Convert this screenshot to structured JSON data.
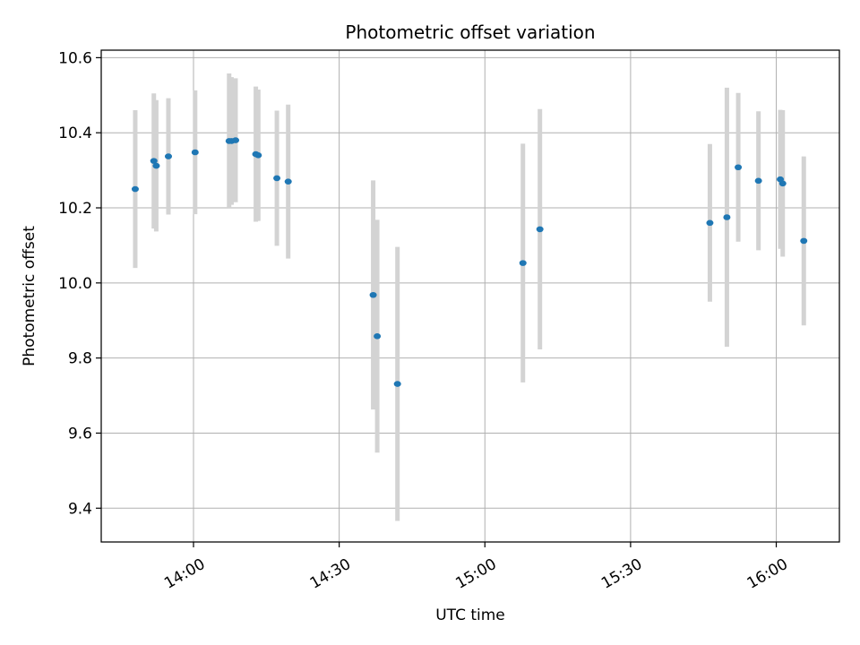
{
  "chart_data": {
    "type": "scatter",
    "title": "Photometric offset variation",
    "xlabel": "UTC time",
    "ylabel": "Photometric offset",
    "xlim": [
      "13:41",
      "16:13"
    ],
    "ylim": [
      9.31,
      10.62
    ],
    "x_ticks": [
      "14:00",
      "14:30",
      "15:00",
      "15:30",
      "16:00"
    ],
    "y_ticks": [
      9.4,
      9.6,
      9.8,
      10.0,
      10.2,
      10.4,
      10.6
    ],
    "y_tick_labels": [
      "9.4",
      "9.6",
      "9.8",
      "10.0",
      "10.2",
      "10.4",
      "10.6"
    ],
    "grid": true,
    "point_color": "#1f77b4",
    "errorbar_color": "#d3d3d3",
    "points": [
      {
        "x": "13:48:00",
        "y": 10.25,
        "err": 0.21
      },
      {
        "x": "13:51:50",
        "y": 10.325,
        "err": 0.18
      },
      {
        "x": "13:52:20",
        "y": 10.312,
        "err": 0.175
      },
      {
        "x": "13:54:50",
        "y": 10.337,
        "err": 0.155
      },
      {
        "x": "14:00:20",
        "y": 10.348,
        "err": 0.165
      },
      {
        "x": "14:07:20",
        "y": 10.378,
        "err": 0.18
      },
      {
        "x": "14:07:50",
        "y": 10.378,
        "err": 0.17
      },
      {
        "x": "14:08:40",
        "y": 10.38,
        "err": 0.165
      },
      {
        "x": "14:12:50",
        "y": 10.343,
        "err": 0.18
      },
      {
        "x": "14:13:20",
        "y": 10.34,
        "err": 0.175
      },
      {
        "x": "14:17:10",
        "y": 10.279,
        "err": 0.18
      },
      {
        "x": "14:19:30",
        "y": 10.27,
        "err": 0.205
      },
      {
        "x": "14:37:00",
        "y": 9.968,
        "err": 0.305
      },
      {
        "x": "14:37:50",
        "y": 9.858,
        "err": 0.31
      },
      {
        "x": "14:42:00",
        "y": 9.731,
        "err": 0.365
      },
      {
        "x": "15:07:50",
        "y": 10.053,
        "err": 0.318
      },
      {
        "x": "15:11:20",
        "y": 10.143,
        "err": 0.32
      },
      {
        "x": "15:46:20",
        "y": 10.16,
        "err": 0.21
      },
      {
        "x": "15:49:50",
        "y": 10.175,
        "err": 0.345
      },
      {
        "x": "15:52:10",
        "y": 10.308,
        "err": 0.198
      },
      {
        "x": "15:56:20",
        "y": 10.272,
        "err": 0.185
      },
      {
        "x": "16:00:50",
        "y": 10.276,
        "err": 0.185
      },
      {
        "x": "16:01:20",
        "y": 10.265,
        "err": 0.195
      },
      {
        "x": "16:05:40",
        "y": 10.112,
        "err": 0.225
      }
    ]
  }
}
